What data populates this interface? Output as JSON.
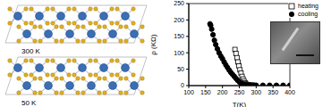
{
  "chart_data": {
    "type": "scatter",
    "x_label": "T(K)",
    "y_label": "ρ (KΩ)",
    "xlim": [
      100,
      400
    ],
    "xticks": [
      100,
      150,
      200,
      250,
      300,
      350,
      400
    ],
    "ylim": [
      0,
      250
    ],
    "yticks": [
      0,
      50,
      100,
      150,
      200,
      250
    ],
    "legend": "upper right",
    "series": [
      {
        "name": "heating",
        "color": "#000000",
        "marker": "open_square",
        "x": [
          237,
          240,
          243,
          246,
          249,
          252,
          255,
          258,
          261,
          264,
          267,
          270,
          275,
          280,
          290
        ],
        "values": [
          110,
          98,
          85,
          72,
          60,
          48,
          38,
          28,
          20,
          13,
          8,
          5,
          3,
          2,
          1.5
        ]
      },
      {
        "name": "cooling",
        "color": "#000000",
        "marker": "circle",
        "x": [
          163,
          165,
          168,
          172,
          176,
          180,
          185,
          190,
          195,
          200,
          205,
          210,
          215,
          220,
          225,
          230,
          235,
          240,
          245,
          250,
          255,
          260,
          265,
          270,
          280,
          290,
          300,
          320,
          340,
          360,
          380,
          400
        ],
        "values": [
          188,
          184,
          172,
          155,
          138,
          125,
          112,
          100,
          90,
          82,
          72,
          63,
          55,
          47,
          40,
          34,
          28,
          22,
          16,
          11,
          7,
          4,
          3,
          2,
          1.5,
          1.2,
          1,
          1,
          1,
          1,
          1,
          1
        ]
      }
    ]
  },
  "structure_panel": {
    "labels": [
      "300 K",
      "50 K"
    ]
  }
}
